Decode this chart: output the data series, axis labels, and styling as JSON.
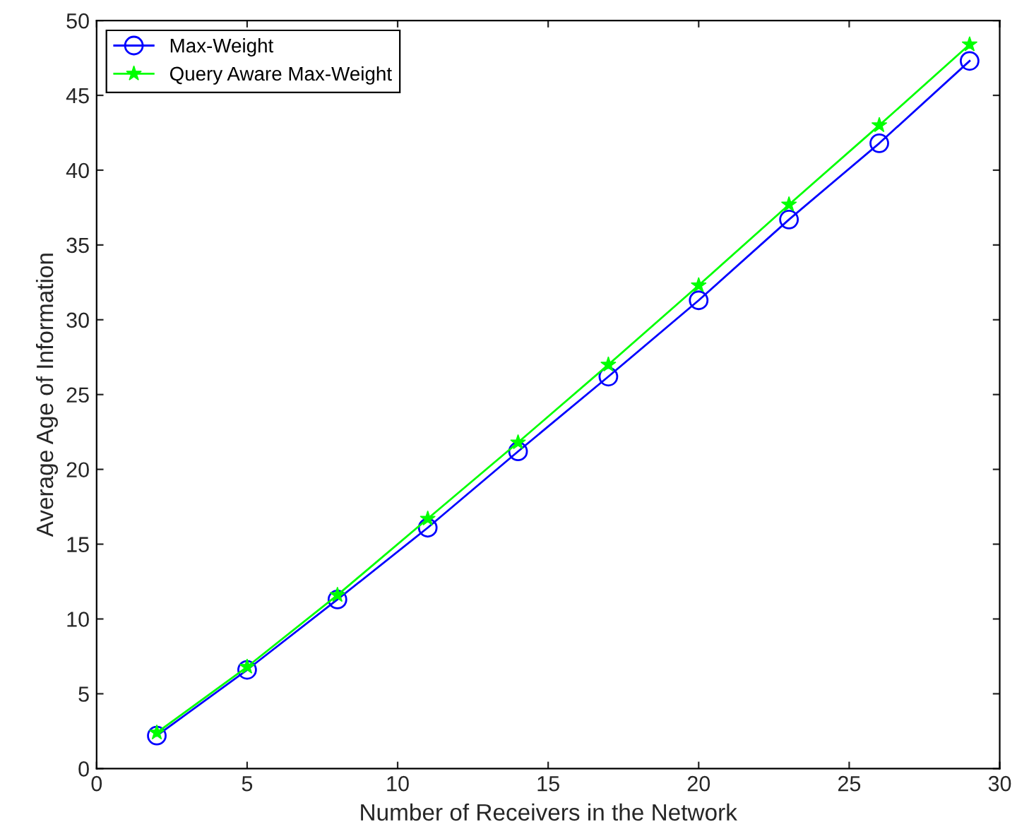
{
  "chart_data": {
    "type": "line",
    "xlabel": "Number of Receivers in the Network",
    "ylabel": "Average Age of Information",
    "x": [
      2,
      5,
      8,
      11,
      14,
      17,
      20,
      23,
      26,
      29
    ],
    "series": [
      {
        "name": "Max-Weight",
        "color": "#0000ff",
        "marker": "circle",
        "values": [
          2.2,
          6.6,
          11.3,
          16.1,
          21.2,
          26.2,
          31.3,
          36.7,
          41.8,
          47.3
        ]
      },
      {
        "name": "Query Aware Max-Weight",
        "color": "#00ff00",
        "marker": "star",
        "values": [
          2.4,
          6.8,
          11.6,
          16.7,
          21.8,
          27.0,
          32.3,
          37.7,
          43.0,
          48.4
        ]
      }
    ],
    "xlim": [
      0,
      30
    ],
    "xticks": [
      0,
      5,
      10,
      15,
      20,
      25,
      30
    ],
    "ylim": [
      0,
      50
    ],
    "yticks": [
      0,
      5,
      10,
      15,
      20,
      25,
      30,
      35,
      40,
      45,
      50
    ],
    "grid": false,
    "legend": "top left",
    "line_style": "solid"
  }
}
